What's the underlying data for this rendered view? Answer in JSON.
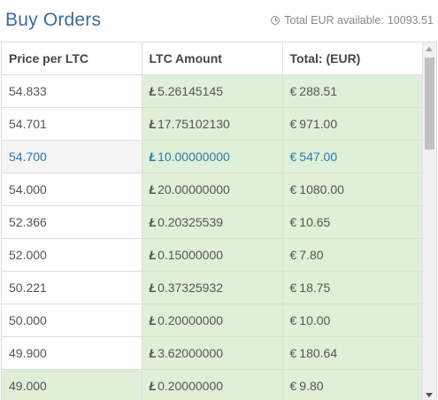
{
  "header": {
    "title": "Buy Orders",
    "available_label": "Total EUR available:",
    "available_value": "10093.51",
    "icon": "clock-icon"
  },
  "table": {
    "columns": [
      "Price per LTC",
      "LTC Amount",
      "Total: (EUR)"
    ],
    "ltc_symbol": "Ł",
    "eur_symbol": "€",
    "rows": [
      {
        "price": "54.833",
        "amount": "5.26145145",
        "total": "288.51"
      },
      {
        "price": "54.701",
        "amount": "17.75102130",
        "total": "971.00"
      },
      {
        "price": "54.700",
        "amount": "10.00000000",
        "total": "547.00"
      },
      {
        "price": "54.000",
        "amount": "20.00000000",
        "total": "1080.00"
      },
      {
        "price": "52.366",
        "amount": "0.20325539",
        "total": "10.65"
      },
      {
        "price": "52.000",
        "amount": "0.15000000",
        "total": "7.80"
      },
      {
        "price": "50.221",
        "amount": "0.37325932",
        "total": "18.75"
      },
      {
        "price": "50.000",
        "amount": "0.20000000",
        "total": "10.00"
      },
      {
        "price": "49.900",
        "amount": "3.62000000",
        "total": "180.64"
      },
      {
        "price": "49.000",
        "amount": "0.20000000",
        "total": "9.80"
      }
    ]
  },
  "colors": {
    "title": "#3d6a99",
    "highlight_text": "#2a7ab0",
    "green_cell": "#dff0d8",
    "gray_cell": "#f5f5f5"
  }
}
